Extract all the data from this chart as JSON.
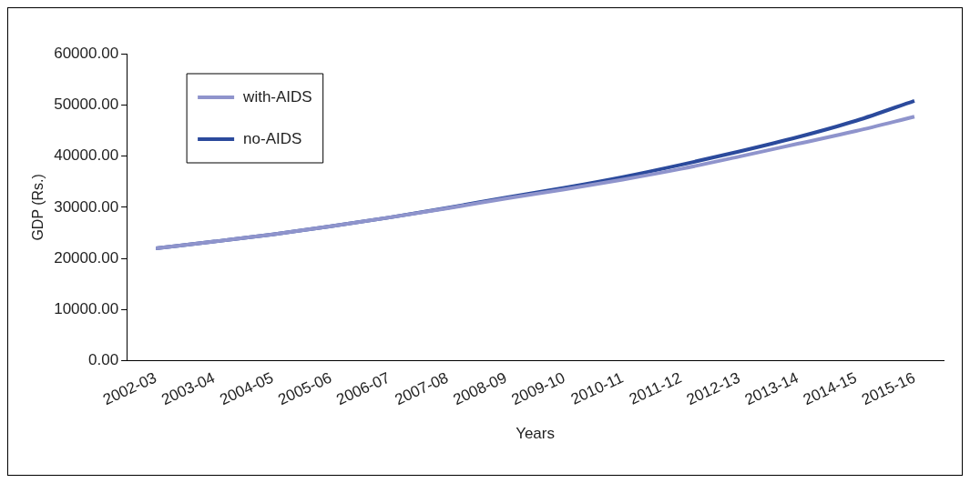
{
  "chart_data": {
    "type": "line",
    "xlabel": "Years",
    "ylabel": "GDP (Rs.)",
    "categories": [
      "2002-03",
      "2003-04",
      "2004-05",
      "2005-06",
      "2006-07",
      "2007-08",
      "2008-09",
      "2009-10",
      "2010-11",
      "2011-12",
      "2012-13",
      "2013-14",
      "2014-15",
      "2015-16"
    ],
    "series": [
      {
        "name": "with-AIDS",
        "color": "#8f94cc",
        "values": [
          22000,
          23300,
          24700,
          26300,
          28000,
          29800,
          31700,
          33500,
          35400,
          37500,
          39900,
          42400,
          44900,
          47700
        ]
      },
      {
        "name": "no-AIDS",
        "color": "#2b4a9c",
        "values": [
          22000,
          23300,
          24700,
          26300,
          28000,
          29900,
          31900,
          33800,
          35900,
          38300,
          40900,
          43700,
          46900,
          50800
        ]
      }
    ],
    "ylim": [
      0,
      60000
    ],
    "yticks": [
      {
        "value": 0,
        "label": "0.00"
      },
      {
        "value": 10000,
        "label": "10000.00"
      },
      {
        "value": 20000,
        "label": "20000.00"
      },
      {
        "value": 30000,
        "label": "30000.00"
      },
      {
        "value": 40000,
        "label": "40000.00"
      },
      {
        "value": 50000,
        "label": "50000.00"
      },
      {
        "value": 60000,
        "label": "60000.00"
      }
    ],
    "grid": false,
    "legend": "top left",
    "marker": "none",
    "line_style": "solid"
  }
}
